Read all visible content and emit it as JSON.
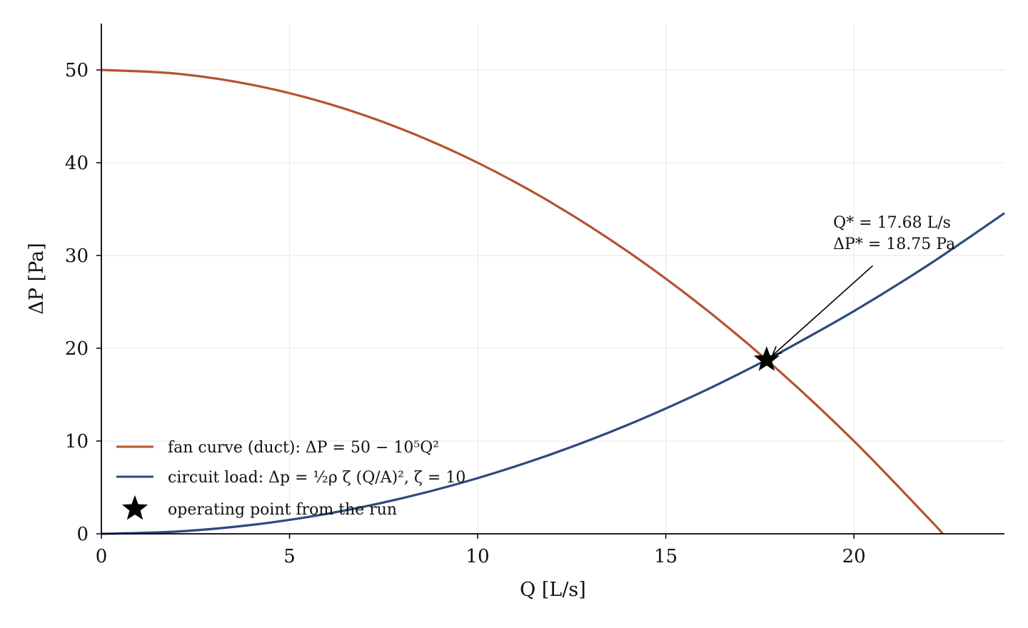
{
  "chart_data": {
    "type": "line",
    "xlabel": "Q [L/s]",
    "ylabel": "ΔP [Pa]",
    "xlim": [
      0,
      24
    ],
    "ylim": [
      0,
      55
    ],
    "x_ticks": [
      0,
      5,
      10,
      15,
      20
    ],
    "y_ticks": [
      0,
      10,
      20,
      30,
      40,
      50
    ],
    "grid": true,
    "legend_position": "lower-left",
    "series": [
      {
        "name": "fan curve (duct): ΔP = 50 − 10⁵Q²",
        "color": "#b5532e",
        "x": [
          0,
          2,
          4,
          6,
          8,
          10,
          12,
          14,
          16,
          18,
          20,
          22,
          22.36
        ],
        "y": [
          50,
          49.6,
          48.4,
          46.4,
          43.6,
          40,
          35.6,
          30.4,
          24.4,
          17.6,
          10,
          1.6,
          0
        ]
      },
      {
        "name": "circuit load: Δp = ½ρ ζ (Q/A)², ζ = 10",
        "color": "#2e4a7d",
        "x": [
          0,
          2,
          4,
          6,
          8,
          10,
          12,
          14,
          16,
          17.68,
          18,
          20,
          22,
          24
        ],
        "y": [
          0,
          0.24,
          0.96,
          2.16,
          3.84,
          6.0,
          8.64,
          11.76,
          15.36,
          18.75,
          19.44,
          24.0,
          29.04,
          34.56
        ]
      }
    ],
    "operating_point": {
      "name": "operating point from the run",
      "x": 17.68,
      "y": 18.75,
      "marker": "star",
      "color": "#000000"
    },
    "annotation": {
      "line1": "Q* = 17.68 L/s",
      "line2": "ΔP* = 18.75 Pa",
      "text_x": 19.45,
      "text_y": 33,
      "arrow_from_x": 20.5,
      "arrow_from_y": 28.9
    }
  }
}
